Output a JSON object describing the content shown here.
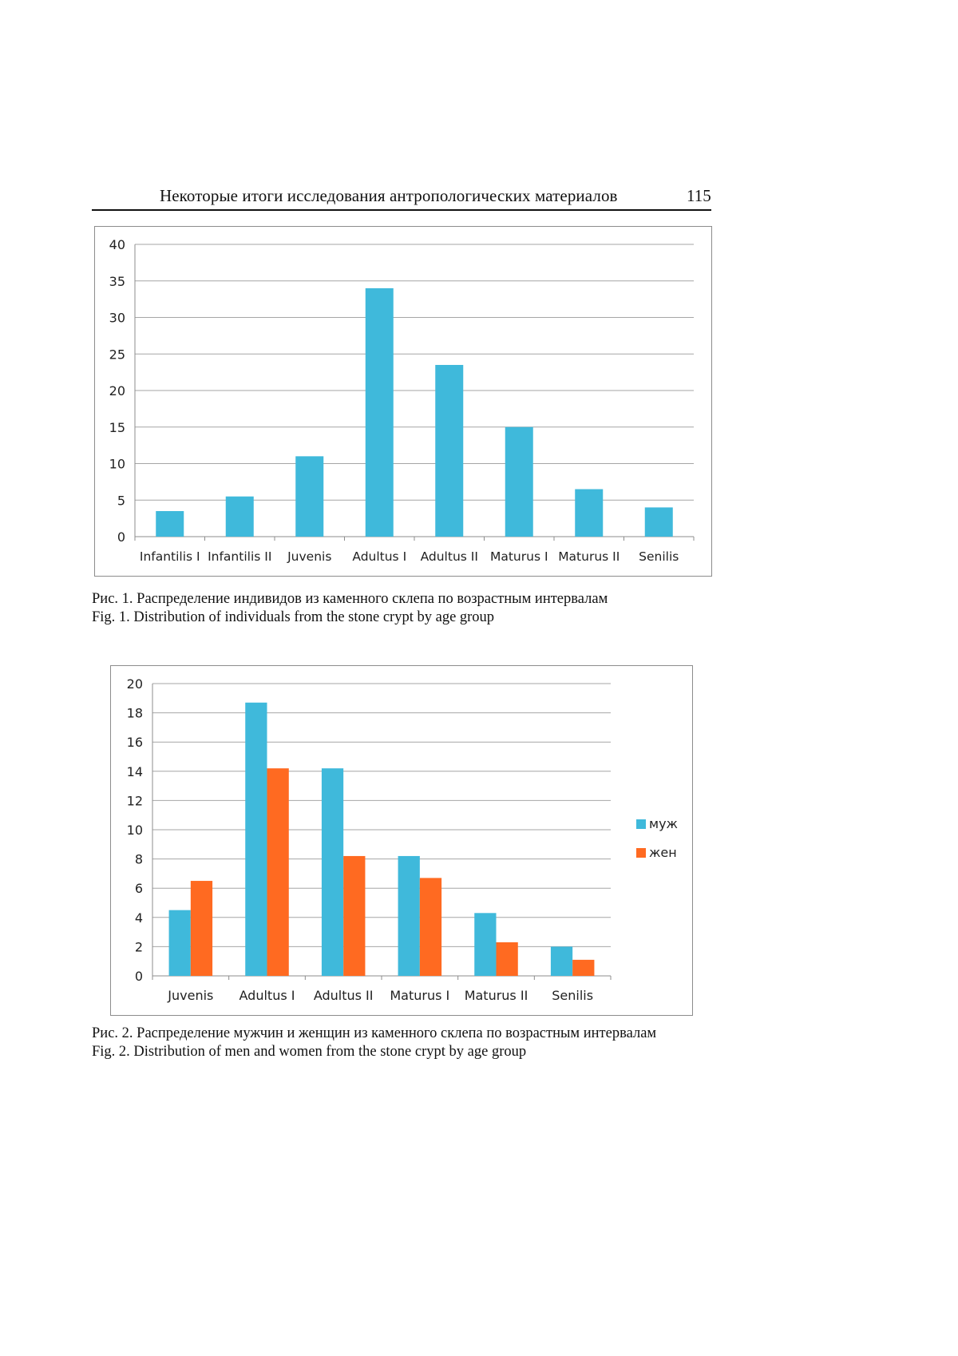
{
  "header": {
    "title": "Некоторые итоги исследования антропологических материалов",
    "page_number": "115"
  },
  "figures": [
    {
      "caption_ru": "Рис. 1. Распределение индивидов из каменного склепа по возрастным интервалам",
      "caption_en": "Fig. 1. Distribution of individuals from the stone crypt by age group"
    },
    {
      "caption_ru": "Рис. 2. Распределение мужчин и женщин из каменного склепа по возрастным интервалам",
      "caption_en": "Fig. 2. Distribution of men and women from the stone crypt by age group"
    }
  ],
  "chart_data": [
    {
      "type": "bar",
      "categories": [
        "Infantilis I",
        "Infantilis II",
        "Juvenis",
        "Adultus I",
        "Adultus II",
        "Maturus I",
        "Maturus II",
        "Senilis"
      ],
      "series": [
        {
          "values": [
            3.5,
            5.5,
            11,
            34,
            23.5,
            15,
            6.5,
            4
          ],
          "color": "#3fb9db"
        }
      ],
      "title": "",
      "xlabel": "",
      "ylabel": "",
      "ylim": [
        0,
        40
      ],
      "yticks": [
        0,
        5,
        10,
        15,
        20,
        25,
        30,
        35,
        40
      ],
      "grid": true,
      "legend": "none"
    },
    {
      "type": "bar",
      "categories": [
        "Juvenis",
        "Adultus I",
        "Adultus II",
        "Maturus I",
        "Maturus II",
        "Senilis"
      ],
      "series": [
        {
          "name": "муж",
          "values": [
            4.5,
            18.7,
            14.2,
            8.2,
            4.3,
            2
          ],
          "color": "#3fb9db"
        },
        {
          "name": "жен",
          "values": [
            6.5,
            14.2,
            8.2,
            6.7,
            2.3,
            1.1
          ],
          "color": "#ff6a21"
        }
      ],
      "title": "",
      "xlabel": "",
      "ylabel": "",
      "ylim": [
        0,
        20
      ],
      "yticks": [
        0,
        2,
        4,
        6,
        8,
        10,
        12,
        14,
        16,
        18,
        20
      ],
      "grid": true,
      "legend": "right"
    }
  ]
}
